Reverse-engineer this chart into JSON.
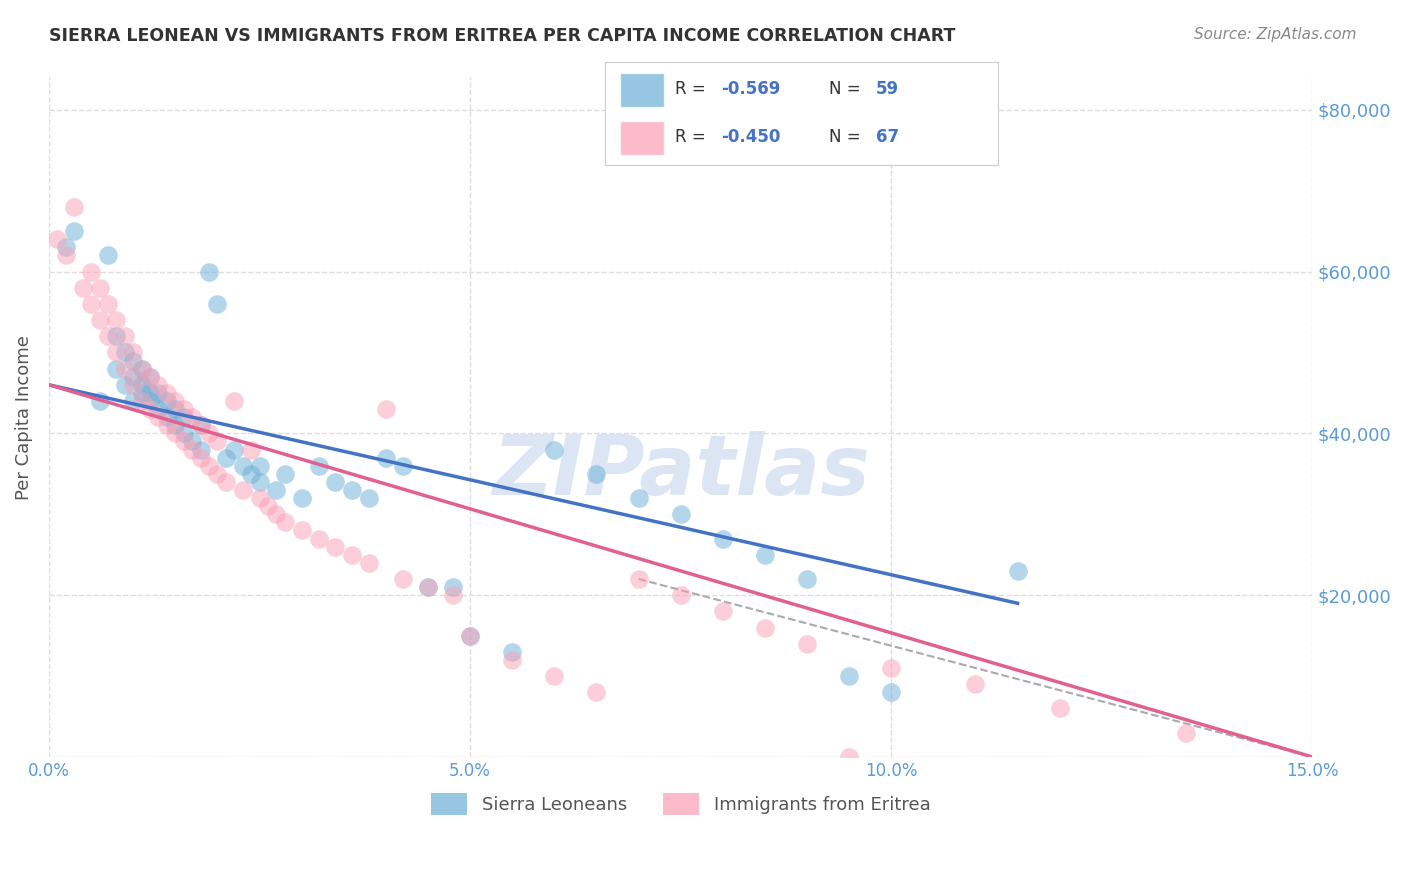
{
  "title": "SIERRA LEONEAN VS IMMIGRANTS FROM ERITREA PER CAPITA INCOME CORRELATION CHART",
  "source": "Source: ZipAtlas.com",
  "ylabel": "Per Capita Income",
  "xmin": 0.0,
  "xmax": 0.15,
  "ymin": 0,
  "ymax": 84000,
  "blue_scatter_x": [
    0.002,
    0.003,
    0.006,
    0.007,
    0.008,
    0.008,
    0.009,
    0.009,
    0.01,
    0.01,
    0.01,
    0.011,
    0.011,
    0.011,
    0.012,
    0.012,
    0.012,
    0.013,
    0.013,
    0.014,
    0.014,
    0.015,
    0.015,
    0.016,
    0.016,
    0.017,
    0.018,
    0.018,
    0.019,
    0.02,
    0.021,
    0.022,
    0.023,
    0.024,
    0.025,
    0.025,
    0.027,
    0.028,
    0.03,
    0.032,
    0.034,
    0.036,
    0.038,
    0.04,
    0.042,
    0.045,
    0.048,
    0.05,
    0.055,
    0.06,
    0.065,
    0.07,
    0.075,
    0.08,
    0.085,
    0.09,
    0.095,
    0.1,
    0.115
  ],
  "blue_scatter_y": [
    63000,
    65000,
    44000,
    62000,
    48000,
    52000,
    46000,
    50000,
    44000,
    47000,
    49000,
    45000,
    46000,
    48000,
    44000,
    45000,
    47000,
    43000,
    45000,
    42000,
    44000,
    41000,
    43000,
    40000,
    42000,
    39000,
    41000,
    38000,
    60000,
    56000,
    37000,
    38000,
    36000,
    35000,
    34000,
    36000,
    33000,
    35000,
    32000,
    36000,
    34000,
    33000,
    32000,
    37000,
    36000,
    21000,
    21000,
    15000,
    13000,
    38000,
    35000,
    32000,
    30000,
    27000,
    25000,
    22000,
    10000,
    8000,
    23000
  ],
  "pink_scatter_x": [
    0.001,
    0.002,
    0.003,
    0.004,
    0.005,
    0.005,
    0.006,
    0.006,
    0.007,
    0.007,
    0.008,
    0.008,
    0.009,
    0.009,
    0.01,
    0.01,
    0.011,
    0.011,
    0.012,
    0.012,
    0.013,
    0.013,
    0.014,
    0.014,
    0.015,
    0.015,
    0.016,
    0.016,
    0.017,
    0.017,
    0.018,
    0.018,
    0.019,
    0.019,
    0.02,
    0.02,
    0.021,
    0.022,
    0.023,
    0.024,
    0.025,
    0.026,
    0.027,
    0.028,
    0.03,
    0.032,
    0.034,
    0.036,
    0.038,
    0.04,
    0.042,
    0.045,
    0.048,
    0.05,
    0.055,
    0.06,
    0.065,
    0.07,
    0.075,
    0.08,
    0.085,
    0.09,
    0.095,
    0.1,
    0.11,
    0.12,
    0.135
  ],
  "pink_scatter_y": [
    64000,
    62000,
    68000,
    58000,
    60000,
    56000,
    54000,
    58000,
    52000,
    56000,
    50000,
    54000,
    48000,
    52000,
    46000,
    50000,
    44000,
    48000,
    43000,
    47000,
    42000,
    46000,
    41000,
    45000,
    40000,
    44000,
    39000,
    43000,
    38000,
    42000,
    37000,
    41000,
    36000,
    40000,
    35000,
    39000,
    34000,
    44000,
    33000,
    38000,
    32000,
    31000,
    30000,
    29000,
    28000,
    27000,
    26000,
    25000,
    24000,
    43000,
    22000,
    21000,
    20000,
    15000,
    12000,
    10000,
    8000,
    22000,
    20000,
    18000,
    16000,
    14000,
    0,
    11000,
    9000,
    6000,
    3000
  ],
  "blue_line_x": [
    0.0,
    0.115
  ],
  "blue_line_y": [
    46000,
    19000
  ],
  "pink_line_x": [
    0.0,
    0.15
  ],
  "pink_line_y": [
    46000,
    0
  ],
  "dash_line_x": [
    0.07,
    0.15
  ],
  "dash_line_y": [
    22000,
    0
  ],
  "watermark": "ZIPatlas",
  "grid_color": "#dddddd",
  "blue_color": "#6baed6",
  "pink_color": "#fa9fb5",
  "blue_line_color": "#4472C4",
  "pink_line_color": "#E06090",
  "title_color": "#333333",
  "axis_label_color": "#5B9BD5",
  "legend_r_color": "#4472C4",
  "legend_r1": "-0.569",
  "legend_n1": "59",
  "legend_r2": "-0.450",
  "legend_n2": "67",
  "bottom_label1": "Sierra Leoneans",
  "bottom_label2": "Immigrants from Eritrea",
  "xtick_labels": [
    "0.0%",
    "5.0%",
    "10.0%",
    "15.0%"
  ],
  "xtick_vals": [
    0.0,
    0.05,
    0.1,
    0.15
  ],
  "ytick_vals": [
    0,
    20000,
    40000,
    60000,
    80000
  ],
  "ytick_labels": [
    "",
    "$20,000",
    "$40,000",
    "$60,000",
    "$80,000"
  ]
}
